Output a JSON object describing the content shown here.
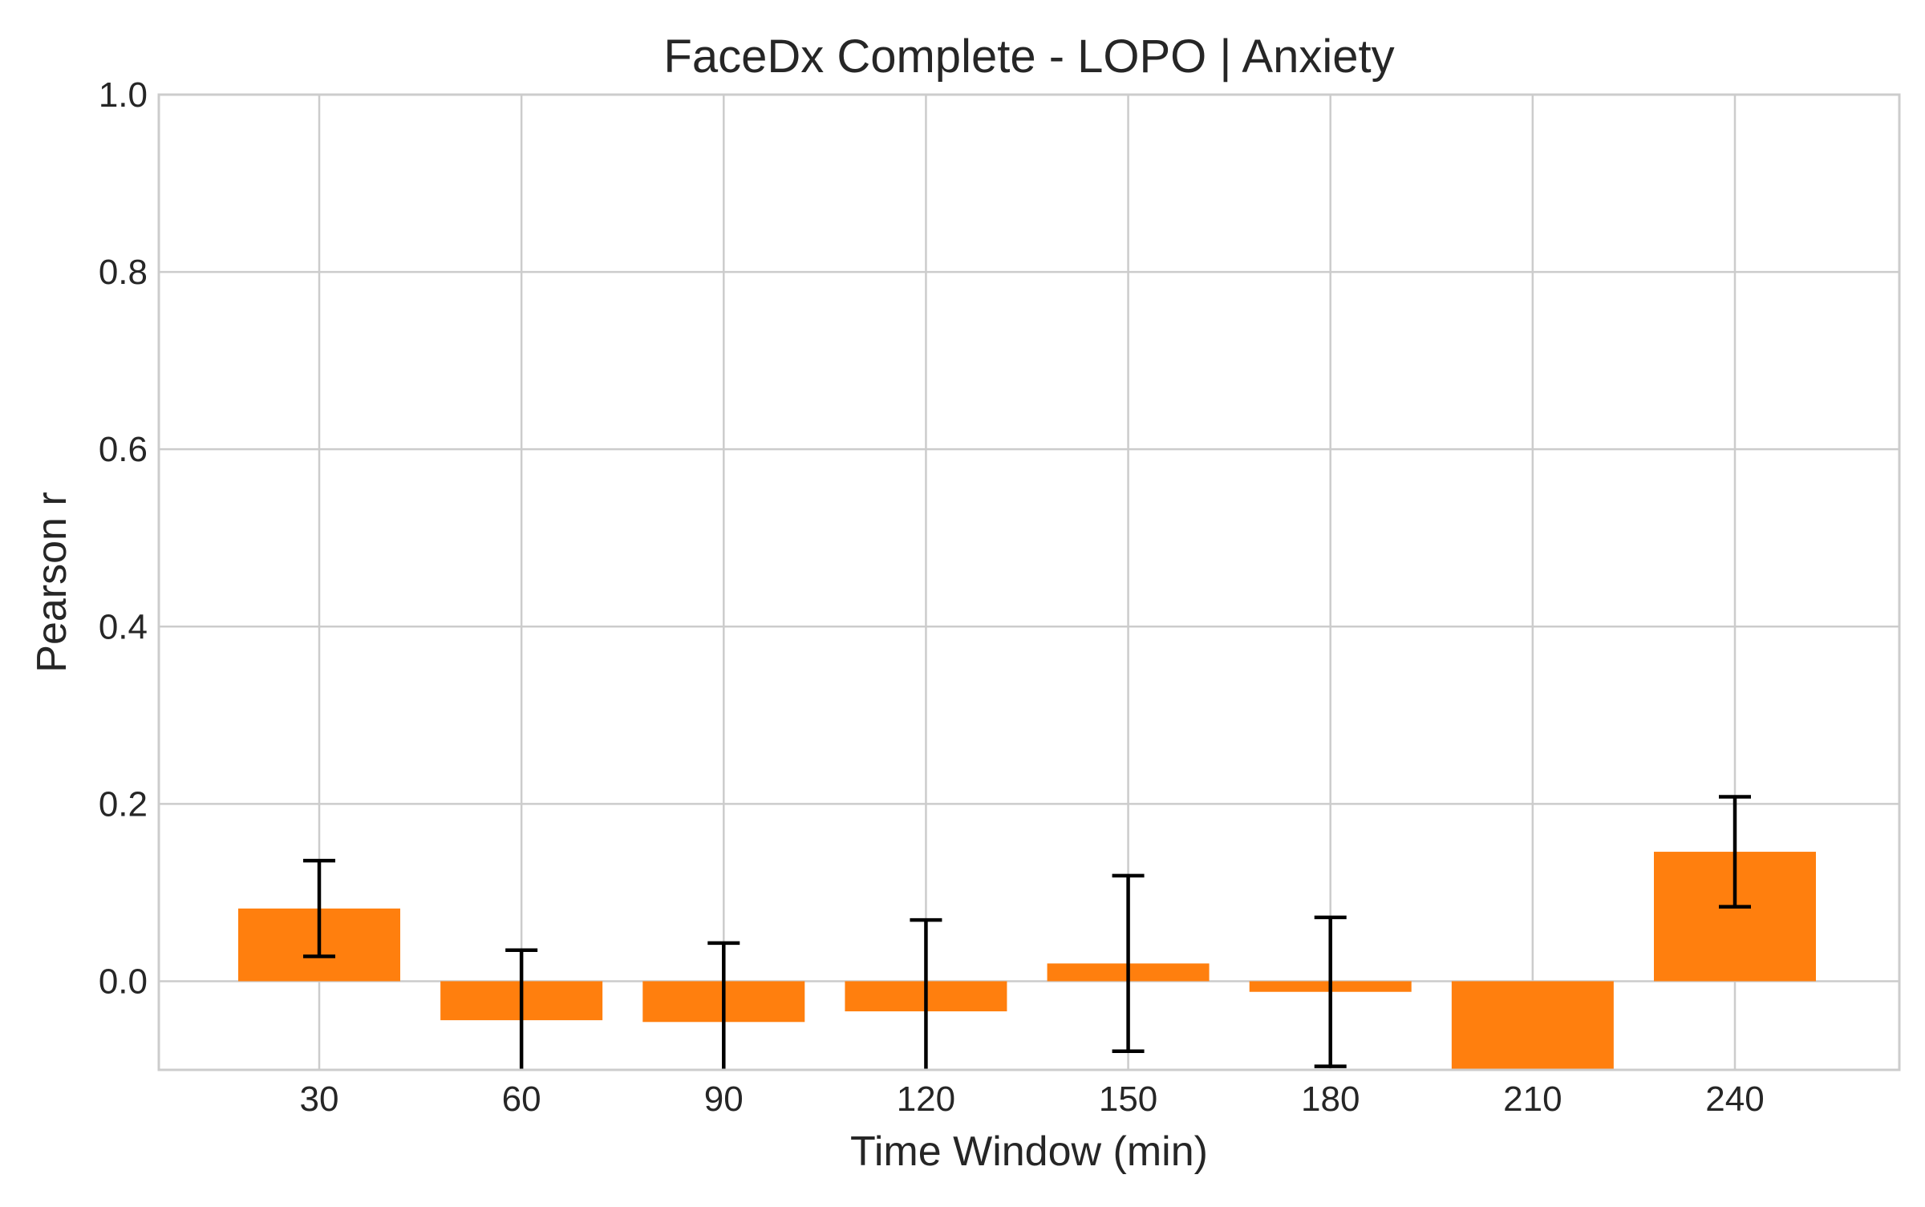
{
  "chart_data": {
    "type": "bar",
    "title": "FaceDx Complete - LOPO | Anxiety",
    "xlabel": "Time Window (min)",
    "ylabel": "Pearson r",
    "categories": [
      "30",
      "60",
      "90",
      "120",
      "150",
      "180",
      "210",
      "240"
    ],
    "values": [
      0.082,
      -0.044,
      -0.046,
      -0.034,
      0.02,
      -0.012,
      -0.12,
      0.146
    ],
    "error": [
      0.054,
      0.079,
      0.089,
      0.103,
      0.099,
      0.084,
      null,
      0.062
    ],
    "ylim": [
      -0.1,
      1.0
    ],
    "yticks": [
      "0.0",
      "0.2",
      "0.4",
      "0.6",
      "0.8",
      "1.0"
    ],
    "ytick_values": [
      0.0,
      0.2,
      0.4,
      0.6,
      0.8,
      1.0
    ],
    "grid": true,
    "legend": "none",
    "colors": {
      "bar": "#ff7f0e",
      "errorbar": "#000000",
      "grid": "#cccccc",
      "spine": "#cccccc",
      "text": "#262626"
    }
  }
}
